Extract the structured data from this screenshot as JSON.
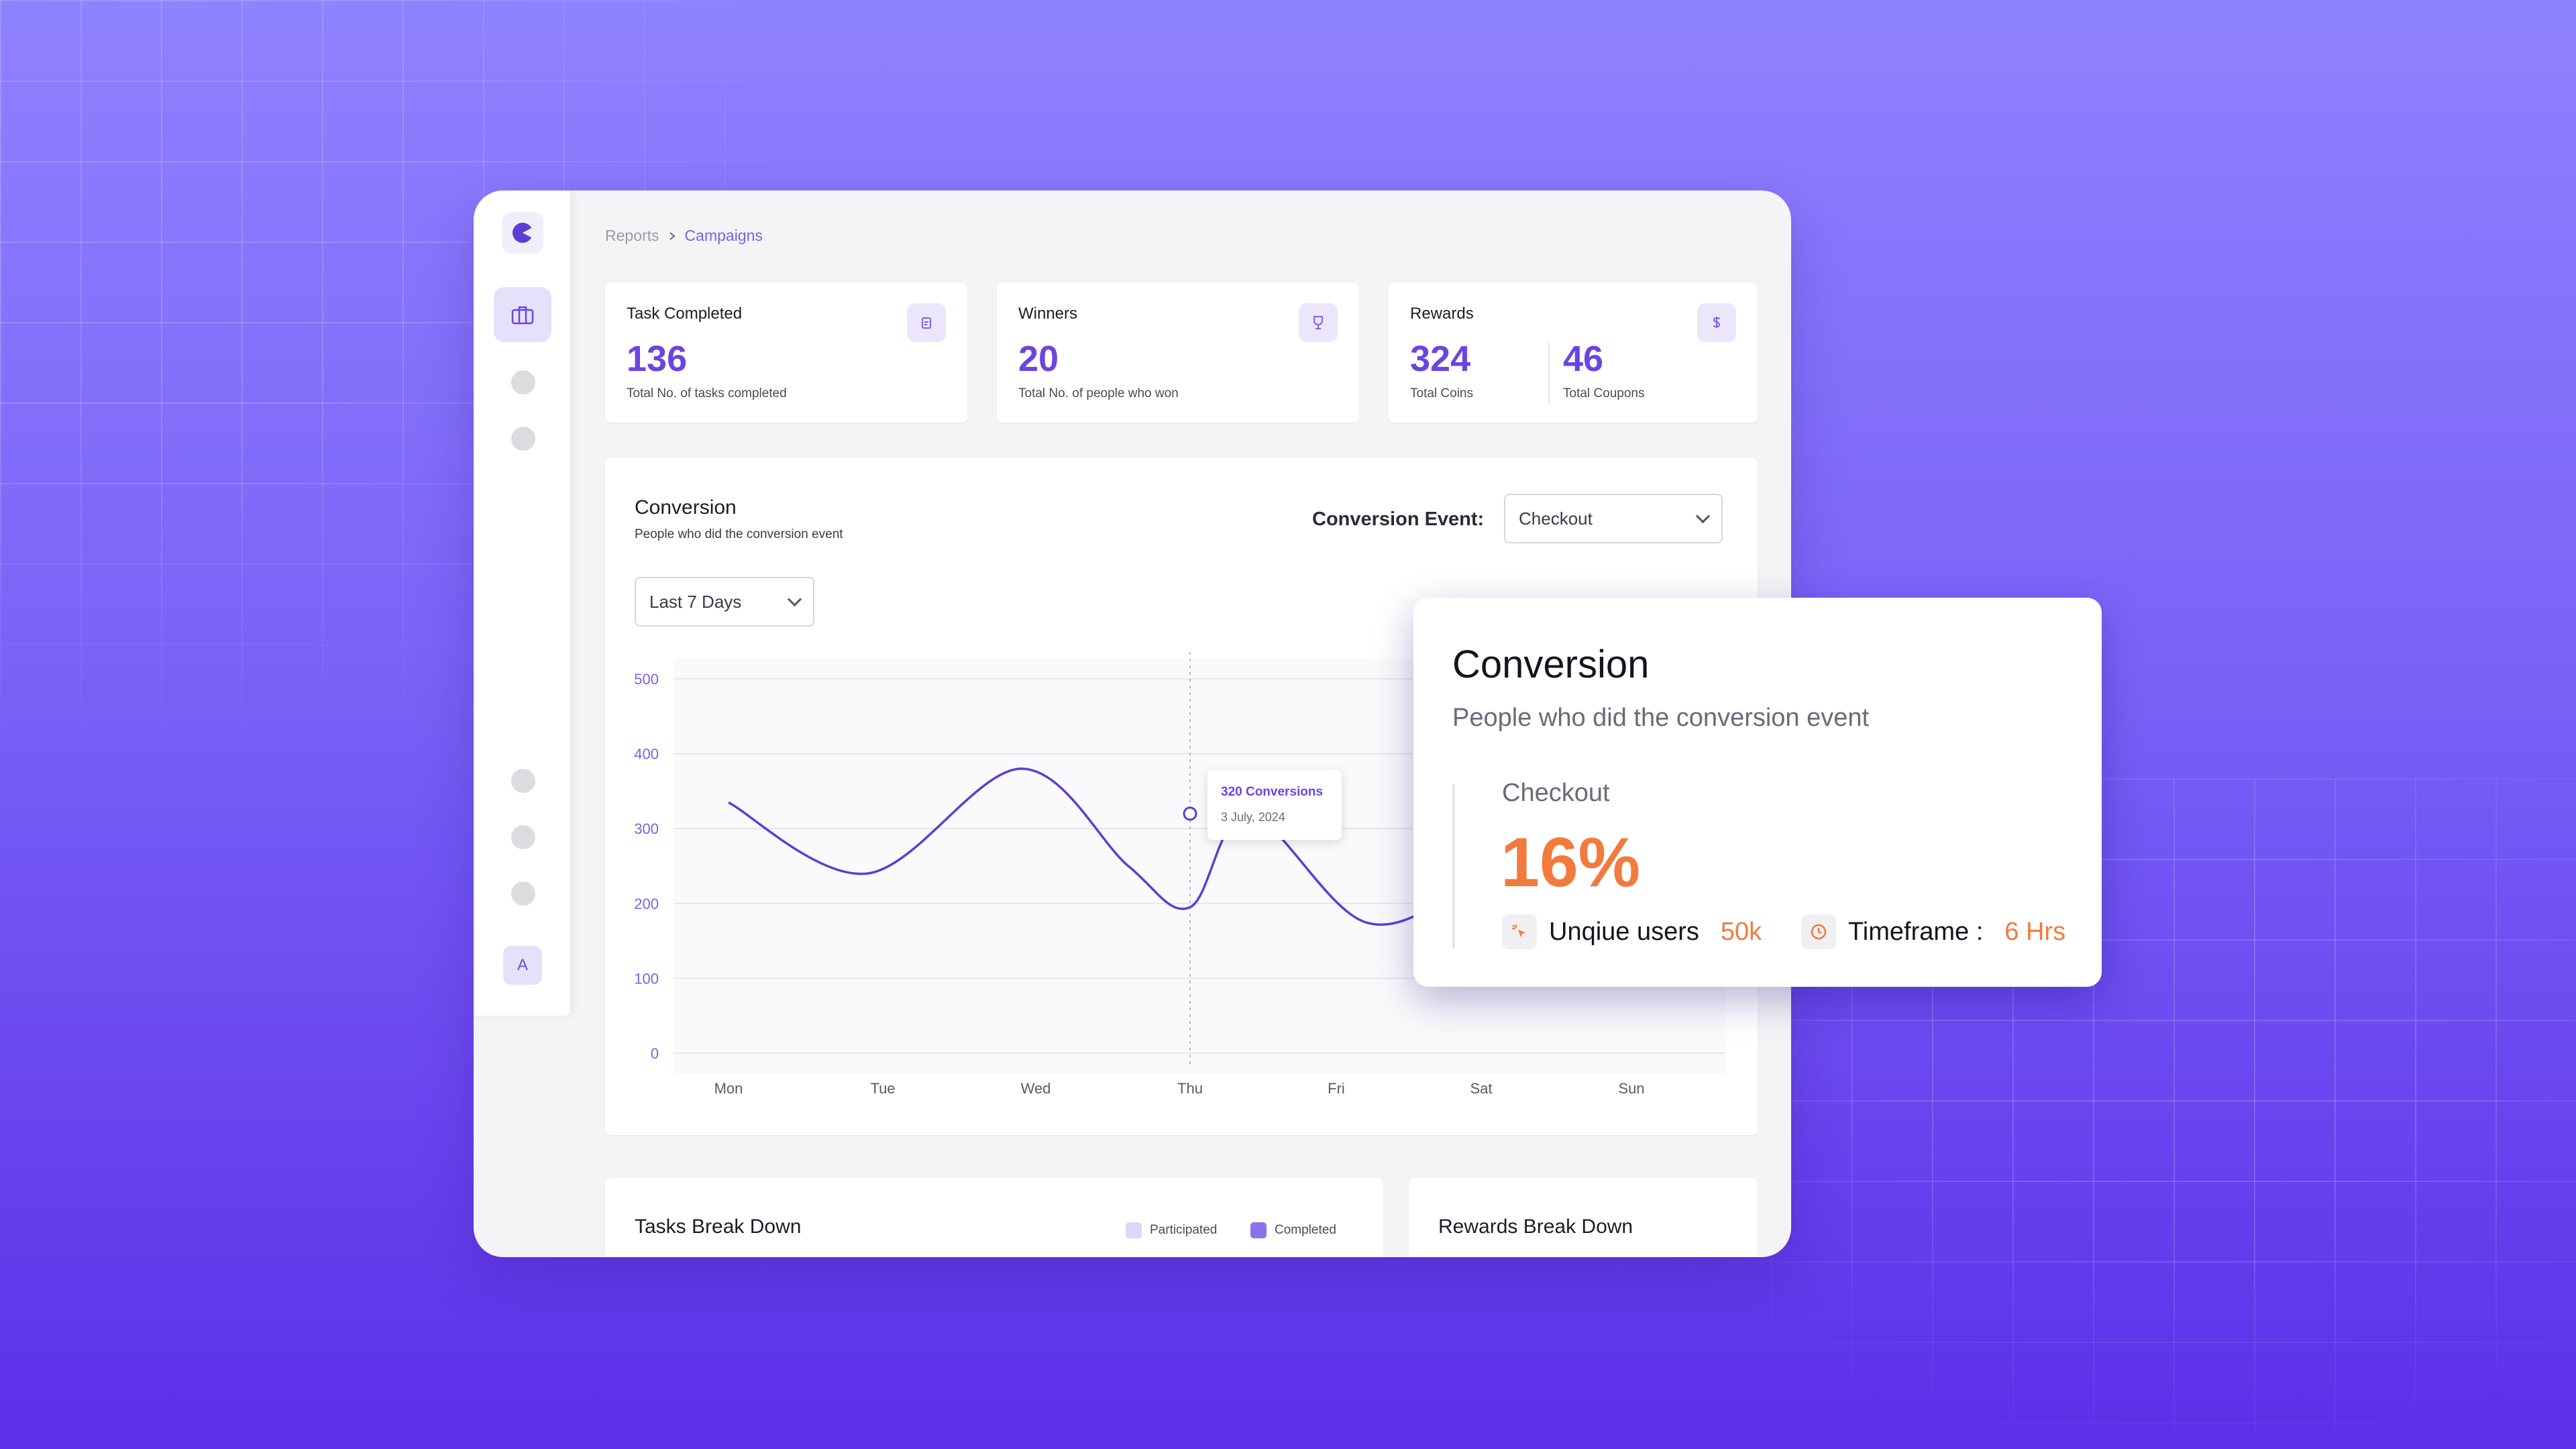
{
  "breadcrumb": {
    "parent": "Reports",
    "current": "Campaigns"
  },
  "sidebar": {
    "avatar_initial": "A"
  },
  "stats": {
    "tasks": {
      "title": "Task Completed",
      "value": "136",
      "subtitle": "Total No. of tasks completed"
    },
    "winners": {
      "title": "Winners",
      "value": "20",
      "subtitle": "Total No. of people who won"
    },
    "rewards": {
      "title": "Rewards",
      "coins_value": "324",
      "coins_label": "Total Coins",
      "coupons_value": "46",
      "coupons_label": "Total Coupons"
    }
  },
  "conversion_card": {
    "title": "Conversion",
    "subtitle": "People who did the conversion event",
    "event_label": "Conversion Event:",
    "event_value": "Checkout",
    "range_value": "Last 7 Days",
    "tooltip": {
      "value": "320 Conversions",
      "date": "3 July, 2024"
    }
  },
  "chart_data": {
    "type": "line",
    "categories": [
      "Mon",
      "Tue",
      "Wed",
      "Thu",
      "Fri",
      "Sat",
      "Sun"
    ],
    "y_ticks": [
      "500",
      "400",
      "300",
      "200",
      "100",
      "0"
    ],
    "ylim": [
      0,
      500
    ],
    "grid": true,
    "series": [
      {
        "x": [
          0,
          0.9,
          1.9,
          2.6,
          3.0,
          3.4,
          4.2,
          5.0,
          6.0,
          6.7
        ],
        "values": [
          335,
          240,
          380,
          250,
          195,
          320,
          175,
          220,
          240,
          250
        ]
      }
    ],
    "highlight": {
      "category": "Thu",
      "value": 320
    },
    "line_color": "#5b3fd6"
  },
  "tasks_breakdown": {
    "title": "Tasks Break Down",
    "legend": [
      {
        "label": "Participated",
        "color": "#dcd6fb"
      },
      {
        "label": "Completed",
        "color": "#8d72ee"
      }
    ]
  },
  "rewards_breakdown": {
    "title": "Rewards Break Down"
  },
  "popup": {
    "title": "Conversion",
    "subtitle": "People who did the conversion event",
    "event": "Checkout",
    "value": "16%",
    "users_label": "Unqiue users",
    "users_value": "50k",
    "timeframe_label": "Timeframe :",
    "timeframe_value": "6 Hrs"
  },
  "colors": {
    "accent": "#6a45e0",
    "orange": "#f37a3e"
  }
}
